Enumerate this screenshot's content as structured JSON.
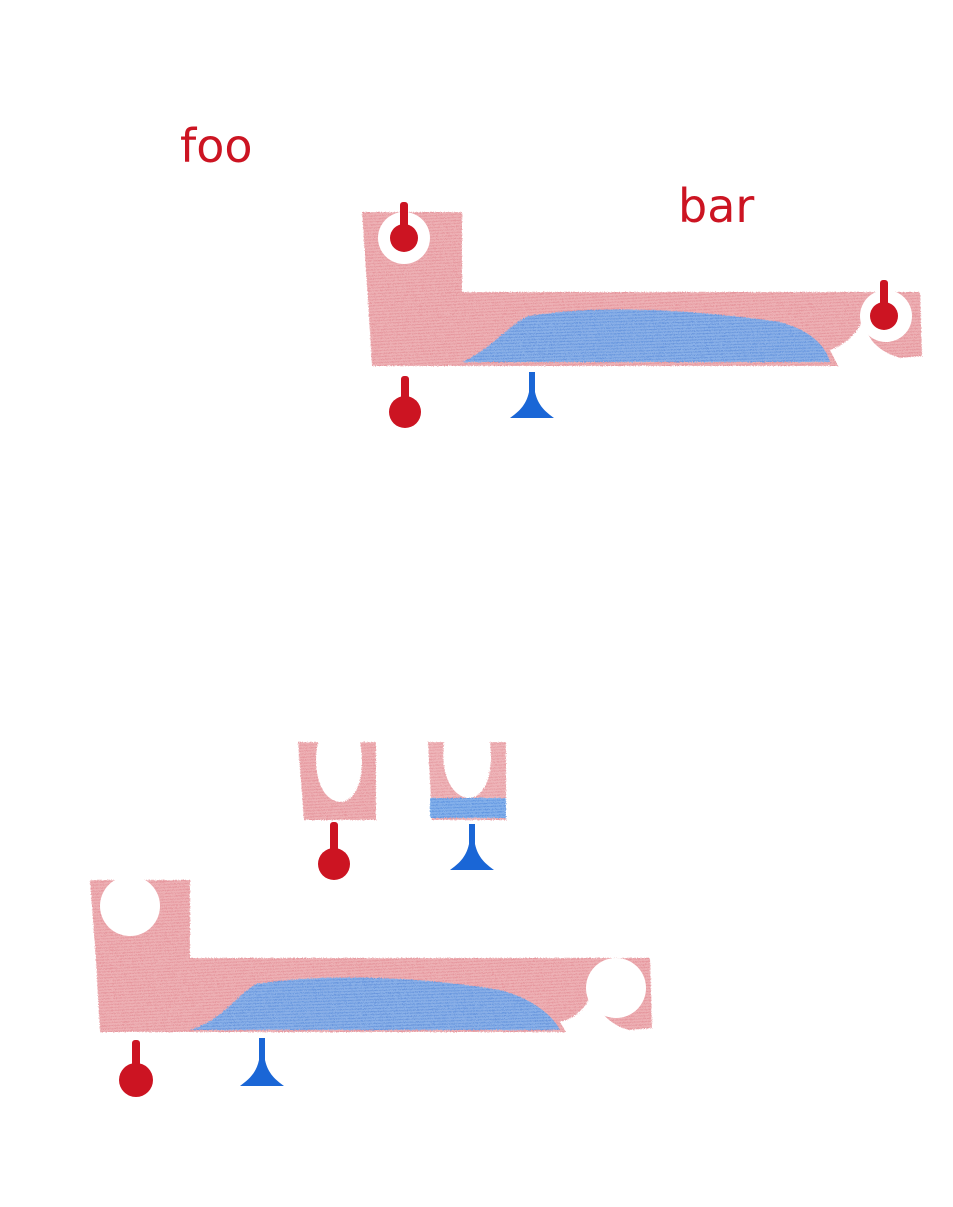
{
  "labels": {
    "foo": "foo",
    "bar": "bar"
  },
  "colors": {
    "red_ink": "#cc1422",
    "red_fill": "#e07f86",
    "blue_ink": "#1a66d6",
    "blue_fill": "#5a9be8",
    "background": "#ffffff"
  },
  "icons": {
    "red_marker": "pin-round-icon",
    "blue_marker": "pin-cone-icon",
    "notch": "u-notch-icon"
  }
}
